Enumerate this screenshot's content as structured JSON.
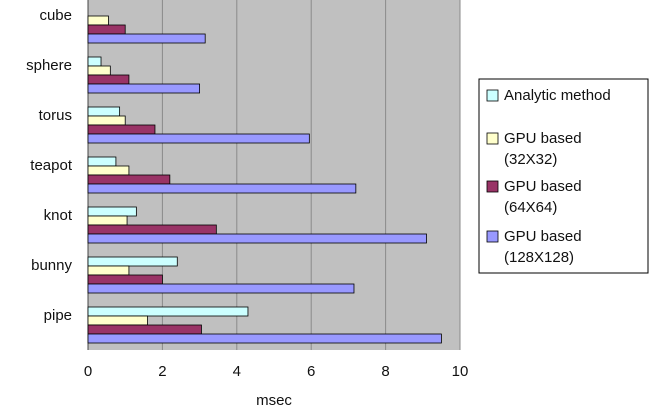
{
  "chart_data": {
    "type": "bar",
    "orientation": "horizontal",
    "categories": [
      "cube",
      "sphere",
      "torus",
      "teapot",
      "knot",
      "bunny",
      "pipe"
    ],
    "series": [
      {
        "name": "Analytic method",
        "color": "#ccffff",
        "values": [
          0,
          0.35,
          0.85,
          0.75,
          1.3,
          2.4,
          4.3
        ]
      },
      {
        "name": "GPU based (32X32)",
        "color": "#ffffcc",
        "values": [
          0.55,
          0.6,
          1.0,
          1.1,
          1.05,
          1.1,
          1.6
        ]
      },
      {
        "name": "GPU based (64X64)",
        "color": "#993366",
        "values": [
          1.0,
          1.1,
          1.8,
          2.2,
          3.45,
          2.0,
          3.05
        ]
      },
      {
        "name": "GPU based (128X128)",
        "color": "#9999ff",
        "values": [
          3.15,
          3.0,
          5.95,
          7.2,
          9.1,
          7.15,
          9.5
        ]
      }
    ],
    "legend": [
      {
        "lines": [
          "Analytic method"
        ]
      },
      {
        "lines": [
          "GPU based",
          "(32X32)"
        ]
      },
      {
        "lines": [
          "GPU based",
          "(64X64)"
        ]
      },
      {
        "lines": [
          "GPU based",
          "(128X128)"
        ]
      }
    ],
    "xlabel": "msec",
    "xlim": [
      0,
      10
    ],
    "xticks": [
      "0",
      "2",
      "4",
      "6",
      "8",
      "10"
    ],
    "tick_values": [
      0,
      2,
      4,
      6,
      8,
      10
    ],
    "grid": true,
    "plot_background": "#c0c0c0",
    "legend_position": "right"
  }
}
